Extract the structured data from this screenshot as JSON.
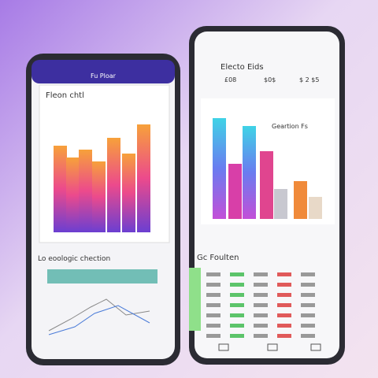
{
  "left_phone": {
    "header": "Fu Ploar",
    "card_title": "Fleon chtl",
    "section_title": "Lo eoologic chection"
  },
  "right_phone": {
    "header": "Electo Eids",
    "stats": [
      "£08",
      "$0$",
      "$ 2 $5"
    ],
    "card_title": "Geartion Fs",
    "section_title": "Gc Foulten"
  }
}
